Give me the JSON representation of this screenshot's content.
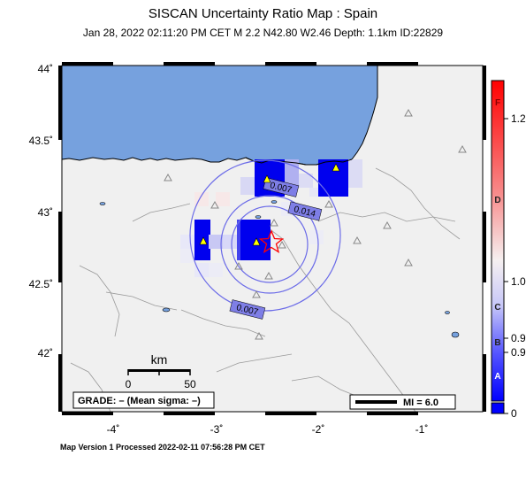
{
  "header": {
    "title": "SISCAN Uncertainty Ratio Map : Spain",
    "subtitle": "Jan 28, 2022 02:11:20 PM CET   M 2.2   N42.80 W2.46   Depth: 1.1km   ID:22829"
  },
  "axes": {
    "lat_labels": [
      "44˚",
      "43.5˚",
      "43˚",
      "42.5˚",
      "42˚"
    ],
    "lon_labels": [
      "-4˚",
      "-3˚",
      "-2˚",
      "-1˚"
    ]
  },
  "contours": {
    "inner": "0.007",
    "middle": "0.014",
    "outer": "0.007"
  },
  "scale_bar": {
    "unit": "km",
    "start": "0",
    "end": "50"
  },
  "grade": {
    "text": "GRADE: – (Mean sigma: –)"
  },
  "mi_legend": {
    "text": "MI = 6.0"
  },
  "colorbar": {
    "tick_labels": [
      "1.2",
      "1.0",
      "0.9",
      "0.9",
      "0"
    ],
    "letters": [
      "F",
      "D",
      "C",
      "B",
      "A"
    ],
    "colors": {
      "top": "#ff0000",
      "middle": "#f6f0f0",
      "bottom": "#0000ff"
    }
  },
  "footer": {
    "text": "Map Version 1 Processed 2022-02-11 07:56:28 PM CET"
  },
  "colors": {
    "sea": "#76a1de",
    "land": "#f0f0f0",
    "contour": "#6b6be8",
    "epicenter": "#ff0000",
    "station": "#ffff00"
  }
}
